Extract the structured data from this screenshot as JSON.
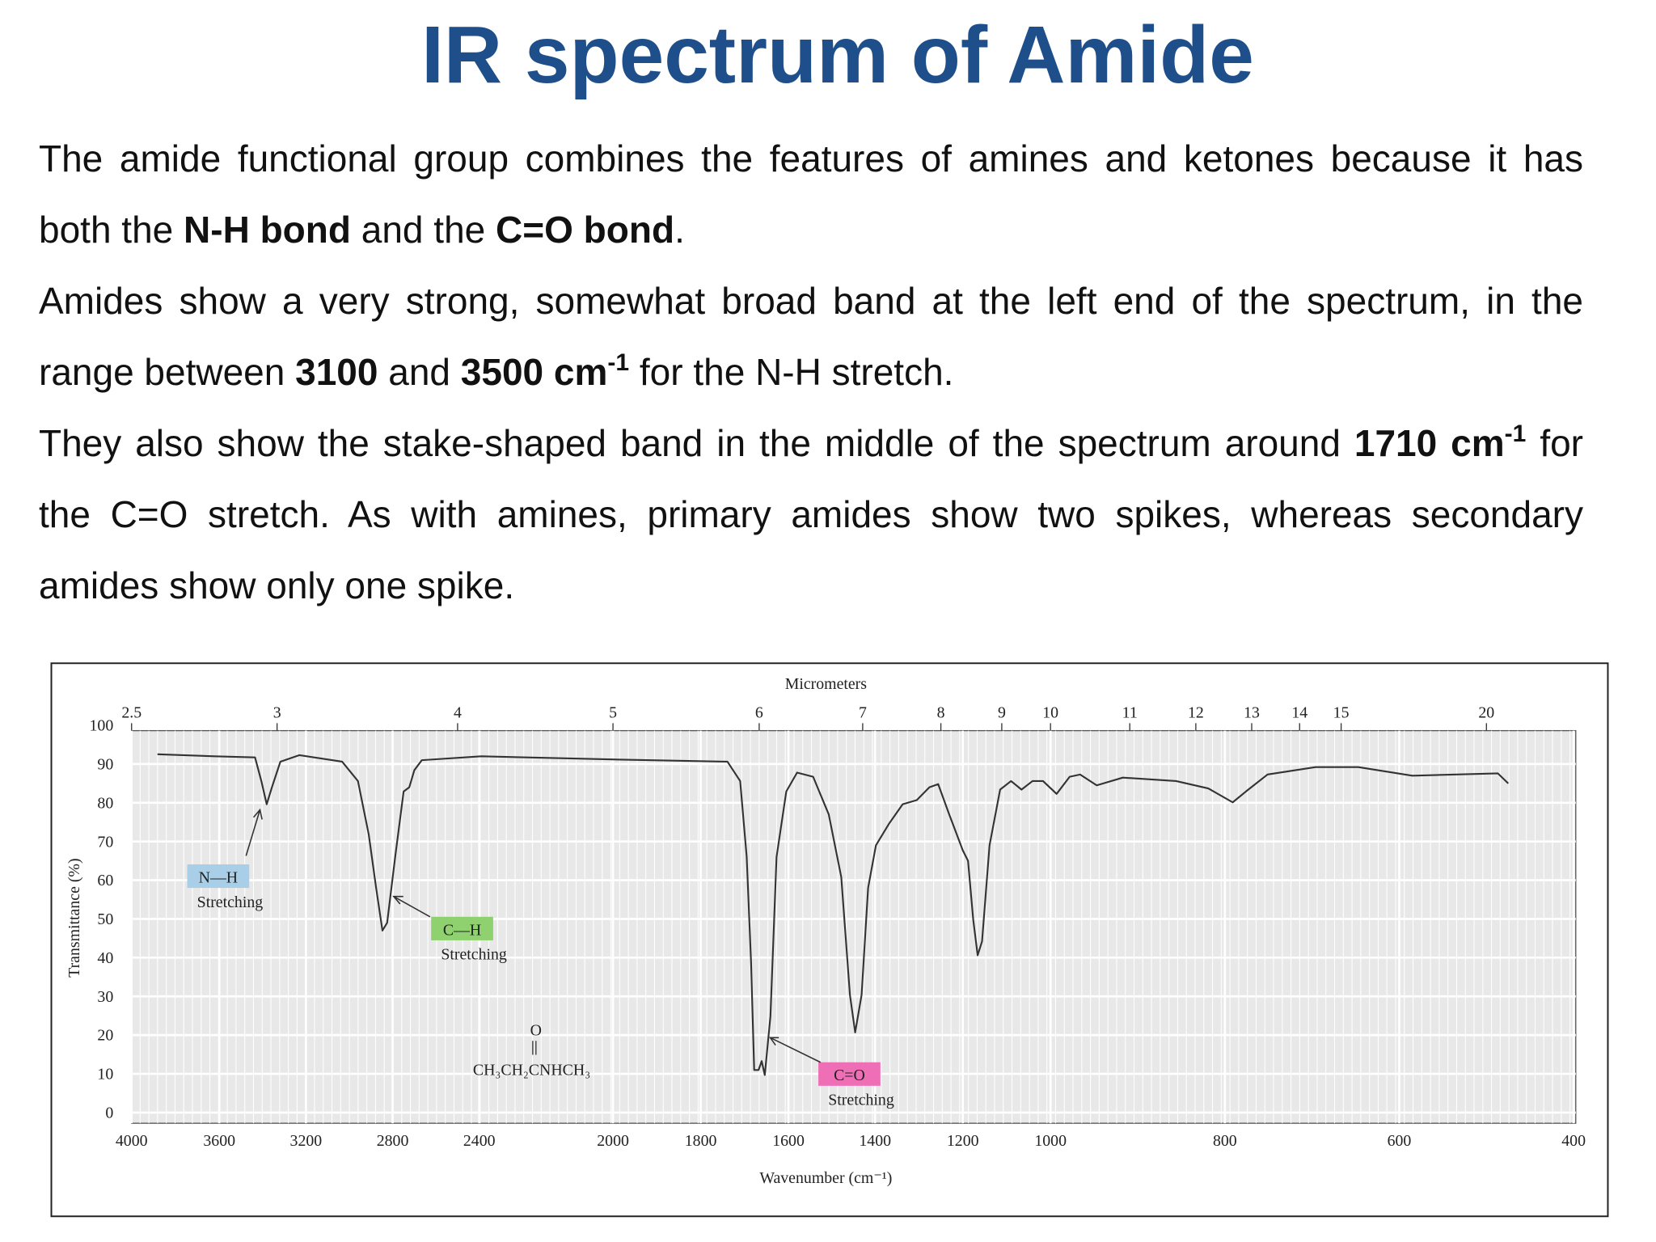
{
  "header": {
    "title": "IR spectrum of Amide"
  },
  "body": {
    "paragraphs": [
      [
        {
          "text": "The amide functional group combines the features of amines and ketones because it has both the "
        },
        {
          "text": "N-H bond",
          "style": "bold"
        },
        {
          "text": " and the "
        },
        {
          "text": "C=O bond",
          "style": "bold"
        },
        {
          "text": "."
        }
      ],
      [
        {
          "text": "Amides show a very strong, somewhat broad band at the left end of the spectrum, in the range between "
        },
        {
          "text": "3100",
          "style": "bold"
        },
        {
          "text": " and "
        },
        {
          "text": "3500 cm",
          "style": "bold"
        },
        {
          "text": "-1",
          "style": "bold-sup"
        },
        {
          "text": " for the N-H stretch."
        }
      ],
      [
        {
          "text": "They also show the stake-shaped band in the middle of the spectrum around "
        },
        {
          "text": "1710 cm",
          "style": "bold"
        },
        {
          "text": "-1",
          "style": "bold-sup"
        },
        {
          "text": " for the C=O stretch. As with amines, primary amides show two spikes, whereas secondary amides show only one spike."
        }
      ]
    ]
  },
  "chart_data": {
    "type": "line",
    "xlabel": "Wavenumber (cm⁻¹)",
    "ylabel": "Transmittance (%)",
    "x2label": "Micrometers",
    "x": [
      3882,
      3622,
      3435,
      3406,
      3381,
      3357,
      3318,
      3230,
      3033,
      2960,
      2910,
      2876,
      2847,
      2825,
      2788,
      2749,
      2723,
      2700,
      2665,
      2394,
      2000,
      1739,
      1710,
      1695,
      1685,
      1678,
      1668,
      1661,
      1654,
      1641,
      1627,
      1605,
      1580,
      1543,
      1507,
      1478,
      1458,
      1446,
      1431,
      1416,
      1398,
      1368,
      1337,
      1305,
      1276,
      1256,
      1232,
      1200,
      1188,
      1176,
      1166,
      1156,
      1139,
      1115,
      1090,
      1066,
      1041,
      1017,
      993,
      978,
      966,
      947,
      917,
      856,
      819,
      791,
      776,
      751,
      696,
      647,
      585,
      487,
      475
    ],
    "values": [
      92.5,
      92,
      91.7,
      85.6,
      79.6,
      84,
      90.6,
      92.3,
      90.6,
      85.6,
      71.8,
      58,
      47,
      49,
      66,
      82.9,
      84,
      88.4,
      91,
      92,
      91.2,
      90.6,
      85.6,
      66,
      38.7,
      11,
      11,
      13.3,
      9.7,
      24.9,
      66,
      82.9,
      87.8,
      86.7,
      77,
      60.8,
      30.4,
      20.7,
      30.4,
      58,
      69,
      74.6,
      79.6,
      80.7,
      84,
      84.8,
      77.3,
      67.7,
      65,
      49.7,
      40.6,
      44.2,
      69,
      83.4,
      85.6,
      83.4,
      85.6,
      85.6,
      82.3,
      86.7,
      87.3,
      84.5,
      86.5,
      85.6,
      83.7,
      80.1,
      82.9,
      87.3,
      89.2,
      89.2,
      87,
      87.6,
      85
    ],
    "color": "#333333",
    "xlim": [
      4000,
      400
    ],
    "xticks": [
      4000,
      3600,
      3200,
      2800,
      2400,
      2000,
      1800,
      1600,
      1400,
      1200,
      1000,
      800,
      600,
      400
    ],
    "ylim": [
      0,
      100
    ],
    "yticks": [
      0,
      10,
      20,
      30,
      40,
      50,
      60,
      70,
      80,
      90,
      100
    ],
    "x2ticks": [
      2.5,
      3,
      4,
      5,
      6,
      7,
      8,
      9,
      10,
      11,
      12,
      13,
      14,
      15,
      20
    ],
    "grid": true,
    "annotations": [
      {
        "label": "N—H",
        "text": "Stretching",
        "color": "#a9cfe8"
      },
      {
        "label": "C—H",
        "text": "Stretching",
        "color": "#8fd06f"
      },
      {
        "label": "C=O",
        "text": "Stretching",
        "color": "#ee6fb6"
      }
    ],
    "structure": {
      "top": "O",
      "formula": "CH₃CH₂CNHCH₃"
    }
  }
}
